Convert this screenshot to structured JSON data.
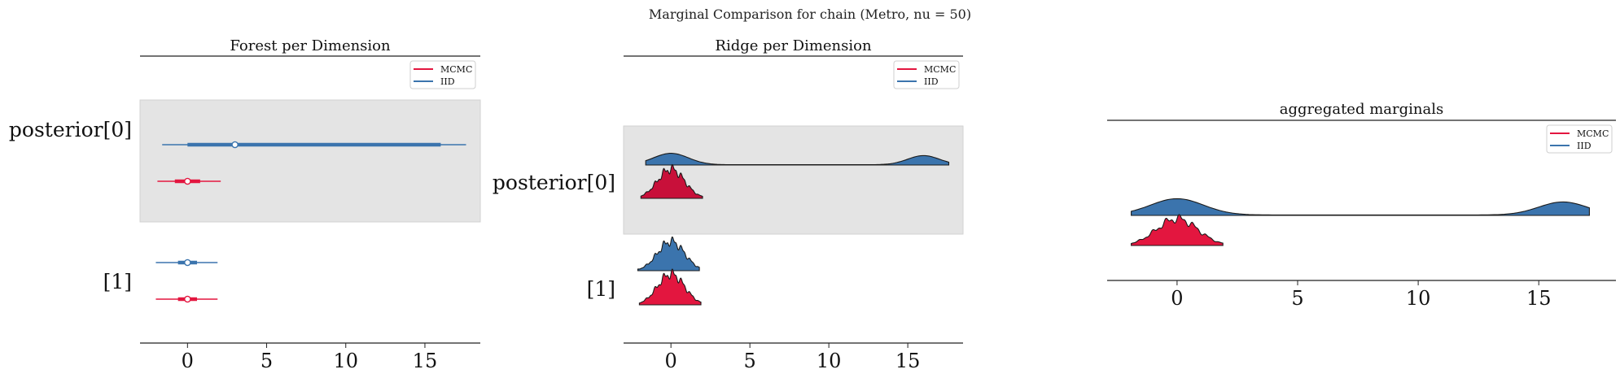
{
  "figure": {
    "title": "Marginal Comparison for chain (Metro, nu = 50)"
  },
  "colors": {
    "mcmc": "#e3163f",
    "iid": "#3b74ad",
    "band": "#e4e4e4",
    "axis": "#222222"
  },
  "legend": {
    "entries": [
      "MCMC",
      "IID"
    ]
  },
  "chart_data": [
    {
      "type": "forest",
      "title": "Forest per Dimension",
      "ylabels": [
        "posterior[0]",
        "[1]"
      ],
      "xticks": [
        0,
        5,
        10,
        15
      ],
      "xlim": [
        -3,
        18.5
      ],
      "legend_position": "top-right",
      "rows": [
        {
          "label": "posterior[0]",
          "shaded": true,
          "IID": {
            "median": 3.0,
            "hdi_inner": [
              0,
              16
            ],
            "hdi_outer": [
              -1.6,
              17.6
            ]
          },
          "MCMC": {
            "median": 0.0,
            "hdi_inner": [
              -0.8,
              0.8
            ],
            "hdi_outer": [
              -1.9,
              2.1
            ]
          }
        },
        {
          "label": "[1]",
          "shaded": false,
          "IID": {
            "median": 0.0,
            "hdi_inner": [
              -0.6,
              0.6
            ],
            "hdi_outer": [
              -2.0,
              1.9
            ]
          },
          "MCMC": {
            "median": 0.0,
            "hdi_inner": [
              -0.6,
              0.6
            ],
            "hdi_outer": [
              -2.0,
              1.9
            ]
          }
        }
      ]
    },
    {
      "type": "ridge",
      "title": "Ridge per Dimension",
      "ylabels": [
        "posterior[0]",
        "[1]"
      ],
      "xticks": [
        0,
        5,
        10,
        15
      ],
      "xlim": [
        -3,
        18.5
      ],
      "legend_position": "top-right",
      "rows": [
        {
          "label": "posterior[0]",
          "shaded": true,
          "IID": "bimodal",
          "MCMC": "unimodal",
          "range_iid": [
            -1.6,
            17.6
          ],
          "range_mcmc": [
            -1.9,
            2.0
          ]
        },
        {
          "label": "[1]",
          "shaded": false,
          "IID": "unimodal",
          "MCMC": "unimodal",
          "range_iid": [
            -2.1,
            1.8
          ],
          "range_mcmc": [
            -2.0,
            1.9
          ]
        }
      ]
    },
    {
      "type": "ridge",
      "title": "aggregated marginals",
      "xticks": [
        0,
        5,
        10,
        15
      ],
      "xlim": [
        -2.9,
        18.2
      ],
      "legend_position": "top-right",
      "series": [
        {
          "name": "IID",
          "range": [
            -1.9,
            17.1
          ],
          "modes": [
            0,
            16
          ]
        },
        {
          "name": "MCMC",
          "range": [
            -1.9,
            1.9
          ],
          "modes": [
            0
          ]
        }
      ]
    }
  ]
}
